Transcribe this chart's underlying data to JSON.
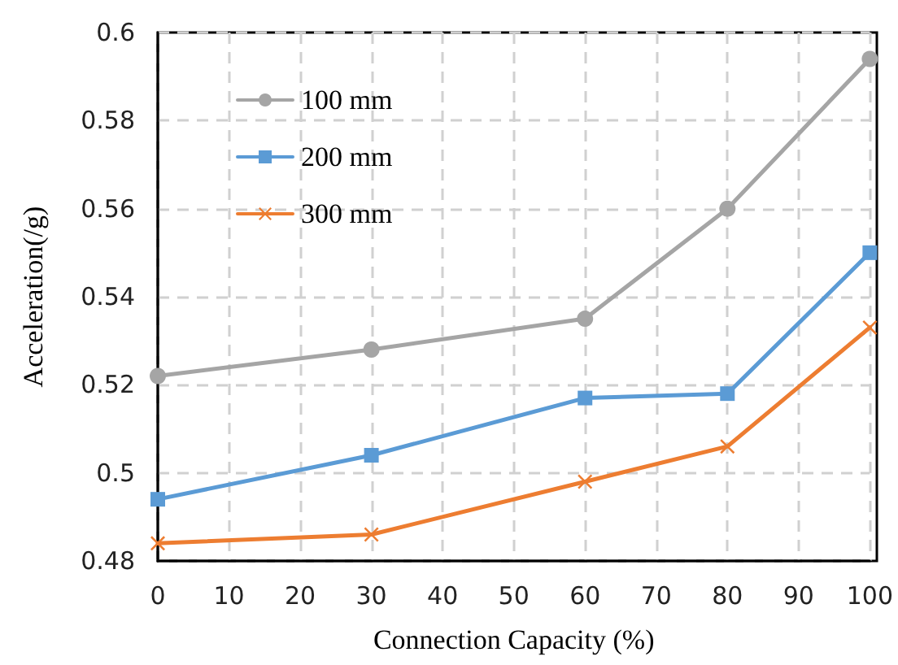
{
  "chart_data": {
    "type": "line",
    "xlabel": "Connection Capacity (%)",
    "ylabel": "Acceleration(/g)",
    "x": [
      0,
      30,
      60,
      80,
      100
    ],
    "series": [
      {
        "name": "100 mm",
        "color": "#a5a5a5",
        "marker": "circle",
        "values": [
          0.522,
          0.528,
          0.535,
          0.56,
          0.594
        ]
      },
      {
        "name": "200 mm",
        "color": "#5b9bd5",
        "marker": "square",
        "values": [
          0.494,
          0.504,
          0.517,
          0.518,
          0.55
        ]
      },
      {
        "name": "300 mm",
        "color": "#ed7d31",
        "marker": "cross",
        "values": [
          0.484,
          0.486,
          0.498,
          0.506,
          0.533
        ]
      }
    ],
    "xlim": [
      0,
      100
    ],
    "xticks": [
      0,
      10,
      20,
      30,
      40,
      50,
      60,
      70,
      80,
      90,
      100
    ],
    "ylim": [
      0.48,
      0.6
    ],
    "yticks": [
      0.48,
      0.5,
      0.52,
      0.54,
      0.56,
      0.58,
      0.6
    ],
    "grid": true,
    "legend": "top left",
    "line_style": "solid"
  }
}
